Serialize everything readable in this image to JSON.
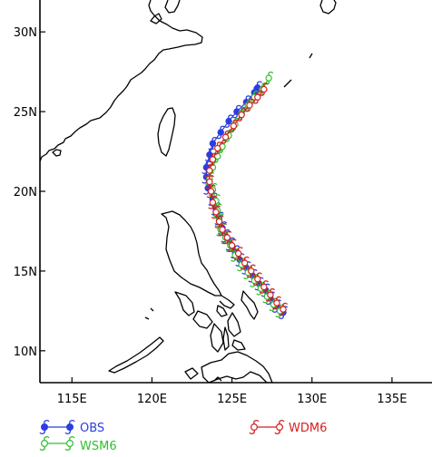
{
  "map": {
    "lon_range": [
      113,
      137.5
    ],
    "lat_range": [
      8,
      32
    ],
    "lon_ticks": [
      {
        "value": 115,
        "label": "115E"
      },
      {
        "value": 120,
        "label": "120E"
      },
      {
        "value": 125,
        "label": "125E"
      },
      {
        "value": 130,
        "label": "130E"
      },
      {
        "value": 135,
        "label": "135E"
      }
    ],
    "lat_ticks": [
      {
        "value": 10,
        "label": "10N"
      },
      {
        "value": 15,
        "label": "15N"
      },
      {
        "value": 20,
        "label": "20N"
      },
      {
        "value": 25,
        "label": "25N"
      },
      {
        "value": 30,
        "label": "30N"
      }
    ]
  },
  "tracks": [
    {
      "name": "OBS",
      "color": "#2a3ee0",
      "points": [
        [
          128.2,
          12.4
        ],
        [
          127.8,
          12.8
        ],
        [
          127.4,
          13.3
        ],
        [
          127.1,
          13.8
        ],
        [
          126.7,
          14.2
        ],
        [
          126.3,
          14.7
        ],
        [
          125.9,
          15.2
        ],
        [
          125.5,
          15.7
        ],
        [
          125.2,
          16.2
        ],
        [
          124.9,
          16.7
        ],
        [
          124.6,
          17.2
        ],
        [
          124.4,
          17.7
        ],
        [
          124.2,
          18.3
        ],
        [
          124.0,
          18.9
        ],
        [
          123.8,
          19.5
        ],
        [
          123.5,
          20.2
        ],
        [
          123.4,
          20.9
        ],
        [
          123.4,
          21.5
        ],
        [
          123.6,
          22.3
        ],
        [
          123.8,
          23.0
        ],
        [
          124.3,
          23.7
        ],
        [
          124.8,
          24.4
        ],
        [
          125.3,
          25.0
        ],
        [
          125.9,
          25.6
        ],
        [
          126.4,
          26.2
        ],
        [
          126.6,
          26.5
        ]
      ]
    },
    {
      "name": "WSM6",
      "color": "#2fc02f",
      "points": [
        [
          128.0,
          12.5
        ],
        [
          127.6,
          12.9
        ],
        [
          127.2,
          13.4
        ],
        [
          126.8,
          13.9
        ],
        [
          126.4,
          14.4
        ],
        [
          126.0,
          14.9
        ],
        [
          125.6,
          15.4
        ],
        [
          125.2,
          16.0
        ],
        [
          124.9,
          16.6
        ],
        [
          124.6,
          17.1
        ],
        [
          124.3,
          17.6
        ],
        [
          124.2,
          18.2
        ],
        [
          124.1,
          18.8
        ],
        [
          124.0,
          19.4
        ],
        [
          123.8,
          20.1
        ],
        [
          123.6,
          20.8
        ],
        [
          123.8,
          21.5
        ],
        [
          124.1,
          22.2
        ],
        [
          124.4,
          22.8
        ],
        [
          124.8,
          23.5
        ],
        [
          125.2,
          24.2
        ],
        [
          125.6,
          24.9
        ],
        [
          126.0,
          25.4
        ],
        [
          126.4,
          25.9
        ],
        [
          126.9,
          26.4
        ],
        [
          127.3,
          27.1
        ]
      ]
    },
    {
      "name": "WDM6",
      "color": "#d42020",
      "points": [
        [
          128.2,
          12.6
        ],
        [
          127.8,
          13.0
        ],
        [
          127.4,
          13.5
        ],
        [
          127.0,
          14.0
        ],
        [
          126.6,
          14.5
        ],
        [
          126.2,
          15.0
        ],
        [
          125.8,
          15.5
        ],
        [
          125.4,
          16.1
        ],
        [
          125.0,
          16.6
        ],
        [
          124.7,
          17.1
        ],
        [
          124.4,
          17.6
        ],
        [
          124.2,
          18.1
        ],
        [
          124.0,
          18.7
        ],
        [
          123.8,
          19.3
        ],
        [
          123.7,
          20.0
        ],
        [
          123.6,
          20.6
        ],
        [
          123.6,
          21.3
        ],
        [
          123.8,
          22.0
        ],
        [
          124.1,
          22.7
        ],
        [
          124.6,
          23.4
        ],
        [
          125.1,
          24.1
        ],
        [
          125.6,
          24.8
        ],
        [
          126.1,
          25.4
        ],
        [
          126.6,
          25.9
        ],
        [
          127.0,
          26.4
        ]
      ]
    }
  ],
  "legend": {
    "obs_label": "OBS",
    "wsm6_label": "WSM6",
    "wdm6_label": "WDM6"
  }
}
